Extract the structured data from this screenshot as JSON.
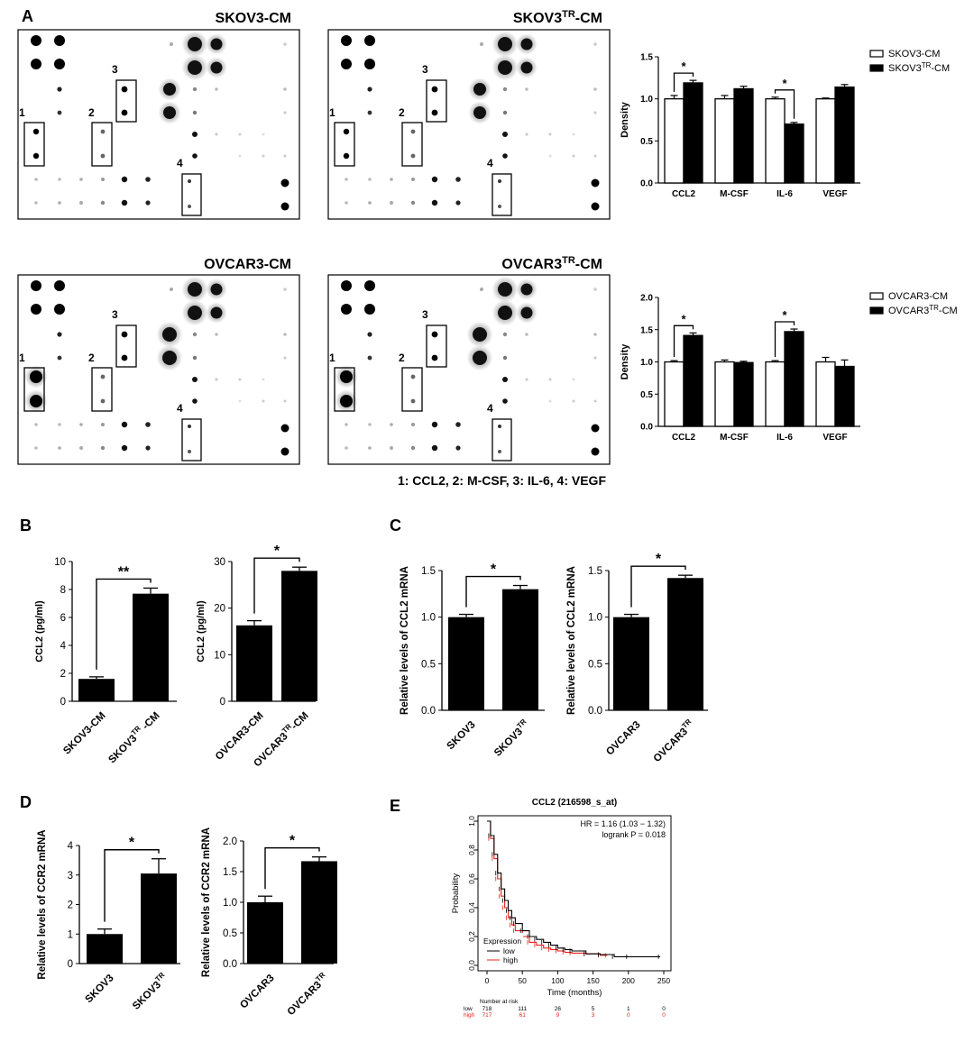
{
  "panel_labels": [
    "A",
    "B",
    "C",
    "D",
    "E"
  ],
  "arrays": {
    "titles": [
      "SKOV3-CM",
      "OVCAR3-CM"
    ],
    "tr_prefix": [
      "SKOV3",
      "OVCAR3"
    ],
    "tr_sup": "TR",
    "tr_suffix": "-CM",
    "box_labels": [
      "1",
      "2",
      "3",
      "4"
    ],
    "legend_caption": "1: CCL2, 2: M-CSF, 3: IL-6, 4: VEGF"
  },
  "chart_data": [
    {
      "id": "A_top",
      "type": "bar",
      "ylabel": "Density",
      "categories": [
        "CCL2",
        "M-CSF",
        "IL-6",
        "VEGF"
      ],
      "yticks": [
        "0.0",
        "0.5",
        "1.0",
        "1.5"
      ],
      "ylim": [
        0,
        1.5
      ],
      "series": [
        {
          "name": "SKOV3-CM",
          "values": [
            1.0,
            1.0,
            1.0,
            1.0
          ],
          "errors": [
            0.04,
            0.04,
            0.02,
            0.01
          ],
          "color": "#ffffff"
        },
        {
          "name_prefix": "SKOV3",
          "name_sup": "TR",
          "name_suffix": "-CM",
          "values": [
            1.19,
            1.12,
            0.7,
            1.14
          ],
          "errors": [
            0.03,
            0.03,
            0.02,
            0.03
          ],
          "color": "#000000"
        }
      ],
      "significance": [
        "*",
        "",
        "*",
        ""
      ]
    },
    {
      "id": "A_bottom",
      "type": "bar",
      "ylabel": "Density",
      "categories": [
        "CCL2",
        "M-CSF",
        "IL-6",
        "VEGF"
      ],
      "yticks": [
        "0.0",
        "0.5",
        "1.0",
        "1.5",
        "2.0"
      ],
      "ylim": [
        0,
        2.0
      ],
      "series": [
        {
          "name": "OVCAR3-CM",
          "values": [
            1.0,
            1.0,
            1.0,
            1.0
          ],
          "errors": [
            0.02,
            0.03,
            0.02,
            0.07
          ],
          "color": "#ffffff"
        },
        {
          "name_prefix": "OVCAR3",
          "name_sup": "TR",
          "name_suffix": "-CM",
          "values": [
            1.41,
            0.99,
            1.47,
            0.93
          ],
          "errors": [
            0.04,
            0.02,
            0.04,
            0.1
          ],
          "color": "#000000"
        }
      ],
      "significance": [
        "*",
        "",
        "*",
        ""
      ]
    },
    {
      "id": "B_left",
      "type": "bar",
      "ylabel": "CCL2 (pg/ml)",
      "yticks": [
        "0",
        "2",
        "4",
        "6",
        "8",
        "10"
      ],
      "ylim": [
        0,
        10
      ],
      "categories": [
        {
          "main": "SKOV3-CM"
        },
        {
          "main": "SKOV3",
          "sup": "TR",
          "suffix": " -CM"
        }
      ],
      "values": [
        1.6,
        7.7
      ],
      "errors": [
        0.15,
        0.4
      ],
      "sig": "**"
    },
    {
      "id": "B_right",
      "type": "bar",
      "ylabel": "CCL2 (pg/ml)",
      "yticks": [
        "0",
        "10",
        "20",
        "30"
      ],
      "ylim": [
        0,
        30
      ],
      "categories": [
        {
          "main": "OVCAR3-CM"
        },
        {
          "main": "OVCAR3",
          "sup": "TR",
          "suffix": "-CM"
        }
      ],
      "values": [
        16.3,
        28
      ],
      "errors": [
        1.0,
        0.8
      ],
      "sig": "*"
    },
    {
      "id": "C_left",
      "type": "bar",
      "ylabel": "Relative levels of CCL2 mRNA",
      "yticks": [
        "0.0",
        "0.5",
        "1.0",
        "1.5"
      ],
      "ylim": [
        0,
        1.5
      ],
      "categories": [
        {
          "main": "SKOV3"
        },
        {
          "main": "SKOV3",
          "sup": "TR"
        }
      ],
      "values": [
        1.0,
        1.3
      ],
      "errors": [
        0.03,
        0.04
      ],
      "sig": "*"
    },
    {
      "id": "C_right",
      "type": "bar",
      "ylabel": "Relative levels of CCL2 mRNA",
      "yticks": [
        "0.0",
        "0.5",
        "1.0",
        "1.5"
      ],
      "ylim": [
        0,
        1.5
      ],
      "categories": [
        {
          "main": "OVCAR3"
        },
        {
          "main": "OVCAR3",
          "sup": "TR"
        }
      ],
      "values": [
        1.0,
        1.42
      ],
      "errors": [
        0.03,
        0.03
      ],
      "sig": "*"
    },
    {
      "id": "D_left",
      "type": "bar",
      "ylabel": "Relative levels of CCR2 mRNA",
      "yticks": [
        "0",
        "1",
        "2",
        "3",
        "4"
      ],
      "ylim": [
        0,
        4
      ],
      "categories": [
        {
          "main": "SKOV3"
        },
        {
          "main": "SKOV3",
          "sup": "TR"
        }
      ],
      "values": [
        1.0,
        3.05
      ],
      "errors": [
        0.17,
        0.5
      ],
      "sig": "*"
    },
    {
      "id": "D_right",
      "type": "bar",
      "ylabel": "Relative levels of CCR2 mRNA",
      "yticks": [
        "0.0",
        "0.5",
        "1.0",
        "1.5",
        "2.0"
      ],
      "ylim": [
        0,
        2.0
      ],
      "categories": [
        {
          "main": "OVCAR3"
        },
        {
          "main": "OVCAR3",
          "sup": "TR"
        }
      ],
      "values": [
        1.0,
        1.67
      ],
      "errors": [
        0.1,
        0.07
      ],
      "sig": "*"
    },
    {
      "id": "E",
      "type": "line",
      "title": "CCL2 (216598_s_at)",
      "xlabel": "Time (months)",
      "ylabel": "Probability",
      "xticks": [
        "0",
        "50",
        "100",
        "150",
        "200",
        "250"
      ],
      "xlim": [
        0,
        250
      ],
      "yticks": [
        "0.0",
        "0.2",
        "0.4",
        "0.6",
        "0.8",
        "1.0"
      ],
      "ylim": [
        0,
        1
      ],
      "hr_text": "HR = 1.16 (1.03 − 1.32)",
      "logrank_text": "logrank P = 0.018",
      "legend_title": "Expression",
      "series": [
        {
          "name": "low",
          "color": "#000000",
          "x": [
            0,
            5,
            10,
            15,
            20,
            25,
            30,
            35,
            40,
            50,
            60,
            70,
            80,
            90,
            100,
            110,
            120,
            140,
            160,
            180,
            200,
            245
          ],
          "y": [
            1.0,
            0.9,
            0.77,
            0.64,
            0.53,
            0.45,
            0.38,
            0.33,
            0.29,
            0.24,
            0.2,
            0.18,
            0.16,
            0.14,
            0.12,
            0.11,
            0.1,
            0.08,
            0.075,
            0.06,
            0.06,
            0.06
          ]
        },
        {
          "name": "high",
          "color": "#e8231d",
          "x": [
            0,
            5,
            10,
            15,
            20,
            25,
            30,
            35,
            40,
            50,
            60,
            70,
            80,
            90,
            100,
            110,
            120,
            140,
            160,
            170
          ],
          "y": [
            1.0,
            0.88,
            0.74,
            0.6,
            0.48,
            0.4,
            0.33,
            0.28,
            0.24,
            0.2,
            0.16,
            0.14,
            0.12,
            0.11,
            0.1,
            0.09,
            0.085,
            0.08,
            0.07,
            0.07
          ]
        }
      ],
      "risk_header": "Number at risk",
      "risk_times": [
        0,
        50,
        100,
        150,
        200,
        250
      ],
      "risk_rows": [
        {
          "label": "low",
          "color": "#000000",
          "values": [
            "718",
            "111",
            "26",
            "5",
            "1",
            "0"
          ]
        },
        {
          "label": "high",
          "color": "#e8231d",
          "values": [
            "717",
            "61",
            "9",
            "3",
            "0",
            "0"
          ]
        }
      ]
    }
  ]
}
